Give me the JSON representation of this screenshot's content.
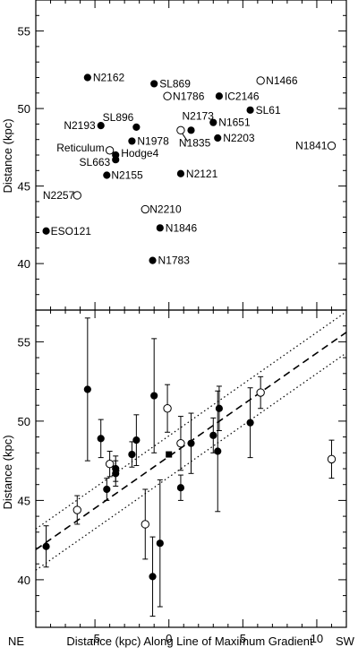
{
  "chart_data": [
    {
      "type": "scatter",
      "panel": "top",
      "ylabel": "Distance (kpc)",
      "xlim": [
        -9,
        12
      ],
      "ylim": [
        37,
        57
      ],
      "yticks": [
        40,
        45,
        50,
        55
      ],
      "points": [
        {
          "name": "N2162",
          "x": -5.5,
          "y": 52.0,
          "filled": true
        },
        {
          "name": "SL869",
          "x": -1.0,
          "y": 51.6,
          "filled": true
        },
        {
          "name": "N1466",
          "x": 6.2,
          "y": 51.8,
          "filled": false
        },
        {
          "name": "N1786",
          "x": -0.1,
          "y": 50.8,
          "filled": false
        },
        {
          "name": "IC2146",
          "x": 3.4,
          "y": 50.8,
          "filled": true
        },
        {
          "name": "SL61",
          "x": 5.5,
          "y": 49.9,
          "filled": true
        },
        {
          "name": "SL896",
          "x": -2.2,
          "y": 48.8,
          "filled": true
        },
        {
          "name": "N2193",
          "x": -4.6,
          "y": 48.9,
          "filled": true
        },
        {
          "name": "N2173",
          "x": 1.5,
          "y": 48.6,
          "filled": true
        },
        {
          "name": "N1651",
          "x": 3.0,
          "y": 49.1,
          "filled": true
        },
        {
          "name": "N1835",
          "x": 0.8,
          "y": 48.6,
          "filled": false
        },
        {
          "name": "N2203",
          "x": 3.3,
          "y": 48.1,
          "filled": true
        },
        {
          "name": "N1978",
          "x": -2.5,
          "y": 47.9,
          "filled": true
        },
        {
          "name": "N1841",
          "x": 11.0,
          "y": 47.6,
          "filled": false
        },
        {
          "name": "Reticulum",
          "x": -4.0,
          "y": 47.3,
          "filled": false
        },
        {
          "name": "Hodge4",
          "x": -3.6,
          "y": 47.0,
          "filled": true
        },
        {
          "name": "SL663",
          "x": -3.6,
          "y": 46.7,
          "filled": true
        },
        {
          "name": "N2155",
          "x": -4.2,
          "y": 45.7,
          "filled": true
        },
        {
          "name": "N2121",
          "x": 0.8,
          "y": 45.8,
          "filled": true
        },
        {
          "name": "N2257",
          "x": -6.2,
          "y": 44.4,
          "filled": false
        },
        {
          "name": "N2210",
          "x": -1.6,
          "y": 43.5,
          "filled": false
        },
        {
          "name": "ESO121",
          "x": -8.3,
          "y": 42.1,
          "filled": true
        },
        {
          "name": "N1846",
          "x": -0.6,
          "y": 42.3,
          "filled": true
        },
        {
          "name": "N1783",
          "x": -1.1,
          "y": 40.2,
          "filled": true
        }
      ]
    },
    {
      "type": "scatter",
      "panel": "bottom",
      "ylabel": "Distance (kpc)",
      "xlim": [
        -9,
        12
      ],
      "ylim": [
        37,
        57
      ],
      "xticks": [
        -5,
        0,
        5,
        10
      ],
      "yticks": [
        40,
        45,
        50,
        55
      ],
      "xlabel_left": "NE",
      "xlabel": "Distance (kpc) Along Line of Maximum Gradient",
      "xlabel_right": "SW",
      "points": [
        {
          "x": -5.5,
          "y": 52.0,
          "err": 4.5,
          "filled": true
        },
        {
          "x": -1.0,
          "y": 51.6,
          "err": 3.6,
          "filled": true
        },
        {
          "x": 6.2,
          "y": 51.8,
          "err": 1.0,
          "filled": false
        },
        {
          "x": -0.1,
          "y": 50.8,
          "err": 1.5,
          "filled": false
        },
        {
          "x": 3.4,
          "y": 50.8,
          "err": 1.4,
          "filled": true
        },
        {
          "x": 5.5,
          "y": 49.9,
          "err": 2.2,
          "filled": true
        },
        {
          "x": -2.2,
          "y": 48.8,
          "err": 1.6,
          "filled": true
        },
        {
          "x": -4.6,
          "y": 48.9,
          "err": 1.2,
          "filled": true
        },
        {
          "x": 1.5,
          "y": 48.6,
          "err": 1.9,
          "filled": true
        },
        {
          "x": 3.0,
          "y": 49.1,
          "err": 1.1,
          "filled": true
        },
        {
          "x": 0.8,
          "y": 48.6,
          "err": 1.7,
          "filled": false
        },
        {
          "x": 3.3,
          "y": 48.1,
          "err": 3.8,
          "filled": true
        },
        {
          "x": -2.5,
          "y": 47.9,
          "err": 0.8,
          "filled": true
        },
        {
          "x": 11.0,
          "y": 47.6,
          "err": 1.2,
          "filled": false
        },
        {
          "x": -4.0,
          "y": 47.3,
          "err": 0.8,
          "filled": false
        },
        {
          "x": -3.6,
          "y": 47.0,
          "err": 0.8,
          "filled": true
        },
        {
          "x": -3.6,
          "y": 46.7,
          "err": 0.8,
          "filled": true
        },
        {
          "x": -4.2,
          "y": 45.7,
          "err": 0.7,
          "filled": true
        },
        {
          "x": 0.8,
          "y": 45.8,
          "err": 0.8,
          "filled": true
        },
        {
          "x": -6.2,
          "y": 44.4,
          "err": 0.9,
          "filled": false
        },
        {
          "x": -1.6,
          "y": 43.5,
          "err": 2.2,
          "filled": false
        },
        {
          "x": -8.3,
          "y": 42.1,
          "err": 1.3,
          "filled": true
        },
        {
          "x": -0.6,
          "y": 42.3,
          "err": 4.0,
          "filled": true
        },
        {
          "x": -1.1,
          "y": 40.2,
          "err": 2.5,
          "filled": true
        }
      ],
      "mean_marker": {
        "x": 0.0,
        "y": 47.9,
        "shape": "square"
      },
      "fit_line": {
        "style": "dashed",
        "x": [
          -9,
          12
        ],
        "y": [
          41.9,
          55.6
        ]
      },
      "band_lines": [
        {
          "style": "dotted",
          "x": [
            -9,
            12
          ],
          "y": [
            43.2,
            56.9
          ]
        },
        {
          "style": "dotted",
          "x": [
            -9,
            12
          ],
          "y": [
            40.6,
            54.3
          ]
        }
      ]
    }
  ]
}
